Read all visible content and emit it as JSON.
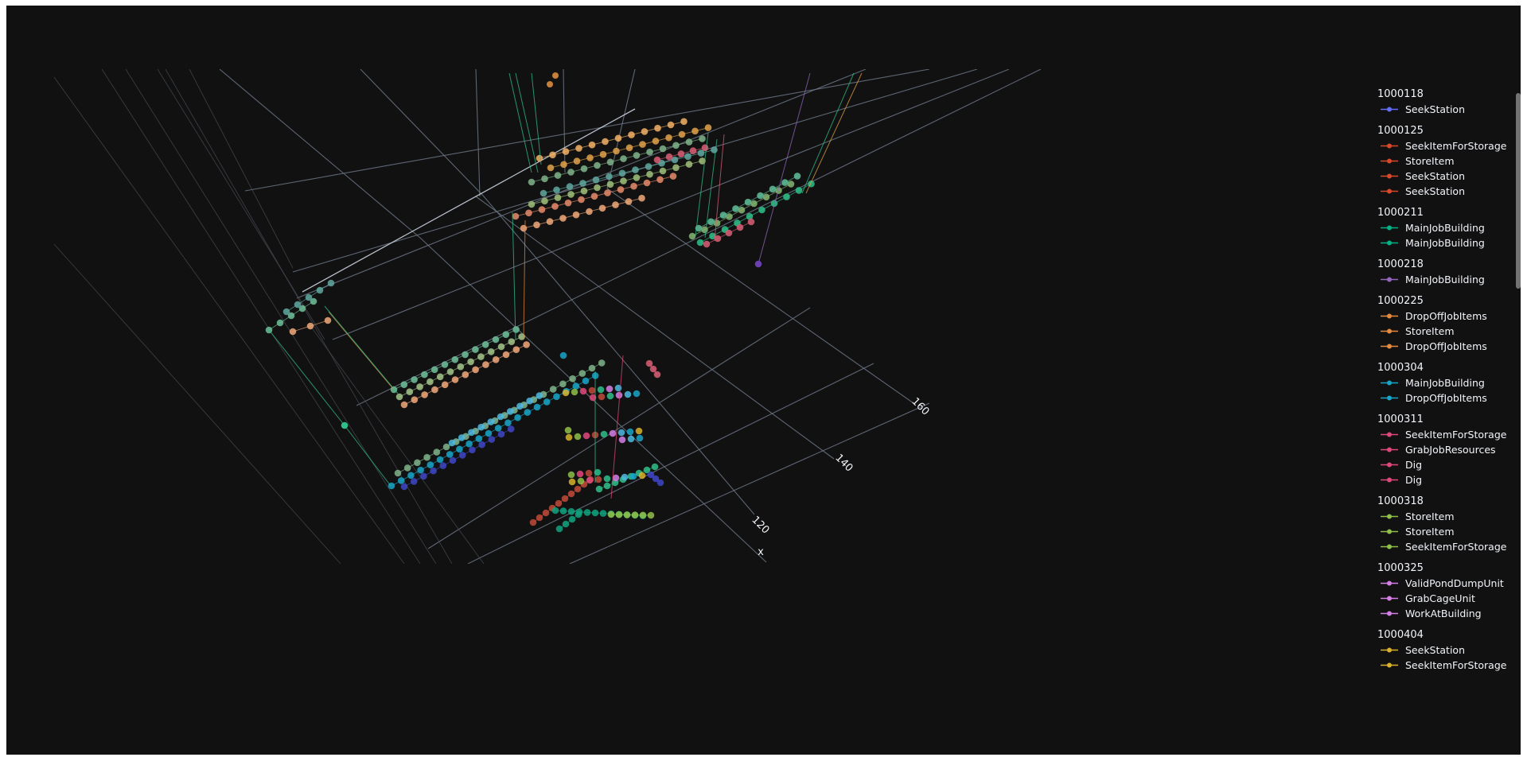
{
  "chart_data": {
    "type": "scatter",
    "mode": "3d lines+markers",
    "axes": {
      "x": {
        "title": "x",
        "ticks": [
          "120",
          "140",
          "160"
        ]
      }
    },
    "legend_placement": "right",
    "legend_groups": [
      {
        "id": "1000118",
        "series": [
          {
            "name": "SeekStation",
            "color": "#636efa"
          }
        ]
      },
      {
        "id": "1000125",
        "series": [
          {
            "name": "SeekItemForStorage",
            "color": "#d9482b"
          },
          {
            "name": "StoreItem",
            "color": "#d9482b"
          },
          {
            "name": "SeekStation",
            "color": "#d9482b"
          },
          {
            "name": "SeekStation",
            "color": "#d9482b"
          }
        ]
      },
      {
        "id": "1000211",
        "series": [
          {
            "name": "MainJobBuilding",
            "color": "#00b386"
          },
          {
            "name": "MainJobBuilding",
            "color": "#00b386"
          }
        ]
      },
      {
        "id": "1000218",
        "series": [
          {
            "name": "MainJobBuilding",
            "color": "#9467bd"
          }
        ]
      },
      {
        "id": "1000225",
        "series": [
          {
            "name": "DropOffJobItems",
            "color": "#e38a3c"
          },
          {
            "name": "StoreItem",
            "color": "#e38a3c"
          },
          {
            "name": "DropOffJobItems",
            "color": "#e38a3c"
          }
        ]
      },
      {
        "id": "1000304",
        "series": [
          {
            "name": "MainJobBuilding",
            "color": "#17a5c8"
          },
          {
            "name": "DropOffJobItems",
            "color": "#17a5c8"
          }
        ]
      },
      {
        "id": "1000311",
        "series": [
          {
            "name": "SeekItemForStorage",
            "color": "#e0487a"
          },
          {
            "name": "GrabJobResources",
            "color": "#e0487a"
          },
          {
            "name": "Dig",
            "color": "#e0487a"
          },
          {
            "name": "Dig",
            "color": "#e0487a"
          }
        ]
      },
      {
        "id": "1000318",
        "series": [
          {
            "name": "StoreItem",
            "color": "#8fbf48"
          },
          {
            "name": "StoreItem",
            "color": "#8fbf48"
          },
          {
            "name": "SeekItemForStorage",
            "color": "#8fbf48"
          }
        ]
      },
      {
        "id": "1000325",
        "series": [
          {
            "name": "ValidPondDumpUnit",
            "color": "#d47fe6"
          },
          {
            "name": "GrabCageUnit",
            "color": "#d47fe6"
          },
          {
            "name": "WorkAtBuilding",
            "color": "#d47fe6"
          }
        ]
      },
      {
        "id": "1000404",
        "series": [
          {
            "name": "SeekStation",
            "color": "#d9b12b"
          },
          {
            "name": "SeekItemForStorage",
            "color": "#d9b12b"
          }
        ]
      }
    ]
  }
}
